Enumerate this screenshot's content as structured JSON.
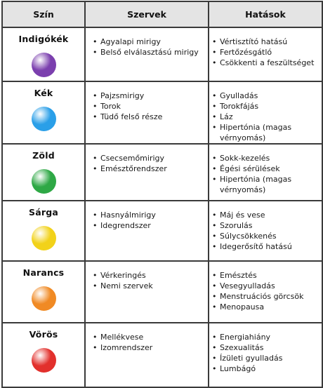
{
  "headers": {
    "color": "Szín",
    "organs": "Szervek",
    "effects": "Hatások"
  },
  "rows": [
    {
      "name": "Indigókék",
      "color": "#7b3fae",
      "organs": [
        "Agyalapi mirigy",
        "Belső elválasztású mirigy"
      ],
      "effects": [
        "Vértisztító hatású",
        "Fertőzésgátló",
        "Csökkenti a feszültséget"
      ]
    },
    {
      "name": "Kék",
      "color": "#2a9fe8",
      "organs": [
        "Pajzsmirigy",
        "Torok",
        "Tüdő felső része"
      ],
      "effects": [
        "Gyulladás",
        "Torokfájás",
        "Láz",
        "Hipertónia (magas vérnyomás)"
      ]
    },
    {
      "name": "Zöld",
      "color": "#2ea845",
      "organs": [
        "Csecsemőmirigy",
        "Emésztőrendszer"
      ],
      "effects": [
        "Sokk-kezelés",
        "Égési sérülések",
        "Hipertónia (magas vérnyomás)"
      ]
    },
    {
      "name": "Sárga",
      "color": "#f2d21a",
      "organs": [
        "Hasnyálmirigy",
        "Idegrendszer"
      ],
      "effects": [
        "Máj és vese",
        "Szorulás",
        "Súlycsökkenés",
        "Idegerősítő hatású"
      ]
    },
    {
      "name": "Narancs",
      "color": "#f08a24",
      "organs": [
        "Vérkeringés",
        "Nemi szervek"
      ],
      "effects": [
        "Emésztés",
        "Vesegyulladás",
        "Menstruációs görcsök",
        "Menopausa"
      ]
    },
    {
      "name": "Vörös",
      "color": "#e2302c",
      "organs": [
        "Mellékvese",
        "Izomrendszer"
      ],
      "effects": [
        "Energiahiány",
        "Szexualitás",
        "Ízületi gyulladás",
        "Lumbágó"
      ]
    }
  ]
}
